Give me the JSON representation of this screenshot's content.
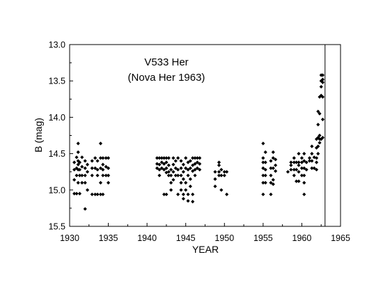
{
  "chart_data": {
    "type": "scatter",
    "title": [
      "V533 Her",
      "(Nova Her 1963)"
    ],
    "xlabel": "YEAR",
    "ylabel": "B  (mag)",
    "xlim": [
      1930,
      1965
    ],
    "ylim": [
      13.0,
      15.5
    ],
    "y_inverted": true,
    "xticks": [
      1930,
      1935,
      1940,
      1945,
      1950,
      1955,
      1960,
      1965
    ],
    "yticks": [
      "13.0",
      "13.5",
      "14.0",
      "14.5",
      "15.0",
      "15.5"
    ],
    "grid": false,
    "marker": "diamond",
    "marker_color": "#000000",
    "annotations": [
      {
        "type": "vertical-line",
        "x": 1963.0
      }
    ],
    "series": [
      {
        "values": [
          [
            1930.6,
            14.62
          ],
          [
            1930.6,
            14.72
          ],
          [
            1930.6,
            14.86
          ],
          [
            1930.6,
            15.05
          ],
          [
            1930.9,
            14.55
          ],
          [
            1930.9,
            14.7
          ],
          [
            1930.9,
            14.8
          ],
          [
            1930.9,
            15.05
          ],
          [
            1931.1,
            14.36
          ],
          [
            1931.1,
            14.48
          ],
          [
            1931.1,
            14.6
          ],
          [
            1931.1,
            14.65
          ],
          [
            1931.1,
            14.72
          ],
          [
            1931.1,
            14.9
          ],
          [
            1931.3,
            14.62
          ],
          [
            1931.3,
            14.72
          ],
          [
            1931.3,
            14.8
          ],
          [
            1931.3,
            15.05
          ],
          [
            1931.6,
            14.55
          ],
          [
            1931.6,
            14.68
          ],
          [
            1931.6,
            14.8
          ],
          [
            1931.6,
            14.9
          ],
          [
            1932.0,
            14.6
          ],
          [
            1932.0,
            14.7
          ],
          [
            1932.0,
            14.8
          ],
          [
            1932.0,
            14.9
          ],
          [
            1932.0,
            15.26
          ],
          [
            1932.3,
            14.65
          ],
          [
            1932.3,
            14.75
          ],
          [
            1932.3,
            15.0
          ],
          [
            1932.9,
            14.6
          ],
          [
            1932.9,
            14.7
          ],
          [
            1932.9,
            14.8
          ],
          [
            1932.9,
            15.06
          ],
          [
            1933.3,
            14.56
          ],
          [
            1933.3,
            14.7
          ],
          [
            1933.3,
            15.06
          ],
          [
            1933.6,
            14.6
          ],
          [
            1933.6,
            14.72
          ],
          [
            1933.6,
            14.8
          ],
          [
            1933.6,
            15.06
          ],
          [
            1934.0,
            14.36
          ],
          [
            1934.0,
            14.56
          ],
          [
            1934.0,
            14.7
          ],
          [
            1934.0,
            14.9
          ],
          [
            1934.0,
            15.06
          ],
          [
            1934.3,
            14.56
          ],
          [
            1934.3,
            14.65
          ],
          [
            1934.3,
            14.72
          ],
          [
            1934.3,
            14.8
          ],
          [
            1934.3,
            15.06
          ],
          [
            1934.7,
            14.56
          ],
          [
            1934.7,
            14.68
          ],
          [
            1934.7,
            14.8
          ],
          [
            1935.0,
            14.56
          ],
          [
            1935.0,
            14.7
          ],
          [
            1935.0,
            14.8
          ],
          [
            1935.0,
            14.9
          ],
          [
            1941.3,
            14.56
          ],
          [
            1941.3,
            14.64
          ],
          [
            1941.3,
            14.7
          ],
          [
            1941.6,
            14.56
          ],
          [
            1941.6,
            14.65
          ],
          [
            1941.6,
            14.72
          ],
          [
            1941.6,
            14.8
          ],
          [
            1941.9,
            14.56
          ],
          [
            1941.9,
            14.62
          ],
          [
            1941.9,
            14.7
          ],
          [
            1942.2,
            14.56
          ],
          [
            1942.2,
            14.64
          ],
          [
            1942.2,
            14.72
          ],
          [
            1942.2,
            15.06
          ],
          [
            1942.5,
            14.56
          ],
          [
            1942.5,
            14.62
          ],
          [
            1942.5,
            14.7
          ],
          [
            1942.5,
            14.76
          ],
          [
            1942.5,
            15.06
          ],
          [
            1942.8,
            14.56
          ],
          [
            1942.8,
            14.66
          ],
          [
            1942.8,
            14.75
          ],
          [
            1942.8,
            14.8
          ],
          [
            1943.1,
            14.72
          ],
          [
            1943.1,
            14.8
          ],
          [
            1943.1,
            14.9
          ],
          [
            1943.1,
            15.0
          ],
          [
            1943.4,
            14.56
          ],
          [
            1943.4,
            14.65
          ],
          [
            1943.4,
            14.75
          ],
          [
            1943.4,
            14.86
          ],
          [
            1943.7,
            14.6
          ],
          [
            1943.7,
            14.7
          ],
          [
            1943.7,
            14.8
          ],
          [
            1944.0,
            14.56
          ],
          [
            1944.0,
            14.72
          ],
          [
            1944.0,
            14.8
          ],
          [
            1944.0,
            15.06
          ],
          [
            1944.4,
            14.6
          ],
          [
            1944.4,
            14.7
          ],
          [
            1944.4,
            14.8
          ],
          [
            1944.4,
            14.9
          ],
          [
            1944.4,
            15.0
          ],
          [
            1944.7,
            14.65
          ],
          [
            1944.7,
            14.75
          ],
          [
            1944.7,
            14.85
          ],
          [
            1944.7,
            15.06
          ],
          [
            1944.7,
            15.12
          ],
          [
            1945.0,
            14.56
          ],
          [
            1945.0,
            14.7
          ],
          [
            1945.0,
            14.9
          ],
          [
            1945.0,
            15.0
          ],
          [
            1945.3,
            14.62
          ],
          [
            1945.3,
            14.72
          ],
          [
            1945.3,
            14.8
          ],
          [
            1945.3,
            15.06
          ],
          [
            1945.3,
            15.15
          ],
          [
            1945.6,
            14.6
          ],
          [
            1945.6,
            14.7
          ],
          [
            1945.6,
            14.85
          ],
          [
            1945.6,
            14.95
          ],
          [
            1945.9,
            14.56
          ],
          [
            1945.9,
            14.66
          ],
          [
            1945.9,
            14.74
          ],
          [
            1945.9,
            15.06
          ],
          [
            1945.9,
            15.16
          ],
          [
            1946.2,
            14.56
          ],
          [
            1946.2,
            14.64
          ],
          [
            1946.2,
            14.72
          ],
          [
            1946.2,
            14.8
          ],
          [
            1946.5,
            14.56
          ],
          [
            1946.5,
            14.62
          ],
          [
            1946.5,
            14.7
          ],
          [
            1946.8,
            14.56
          ],
          [
            1946.8,
            14.64
          ],
          [
            1946.8,
            14.72
          ],
          [
            1948.8,
            14.75
          ],
          [
            1948.8,
            14.85
          ],
          [
            1948.8,
            14.95
          ],
          [
            1949.3,
            14.62
          ],
          [
            1949.3,
            14.66
          ],
          [
            1949.3,
            14.75
          ],
          [
            1949.3,
            14.8
          ],
          [
            1949.6,
            14.72
          ],
          [
            1949.6,
            14.8
          ],
          [
            1949.6,
            15.0
          ],
          [
            1950.0,
            14.75
          ],
          [
            1950.0,
            14.8
          ],
          [
            1950.3,
            14.75
          ],
          [
            1950.3,
            15.06
          ],
          [
            1955.0,
            14.36
          ],
          [
            1955.0,
            14.56
          ],
          [
            1955.0,
            14.62
          ],
          [
            1955.0,
            14.7
          ],
          [
            1955.0,
            14.8
          ],
          [
            1955.0,
            14.9
          ],
          [
            1955.0,
            15.06
          ],
          [
            1955.3,
            14.48
          ],
          [
            1955.3,
            14.62
          ],
          [
            1955.3,
            14.72
          ],
          [
            1955.3,
            14.8
          ],
          [
            1955.3,
            14.9
          ],
          [
            1956.0,
            14.6
          ],
          [
            1956.0,
            14.7
          ],
          [
            1956.0,
            14.8
          ],
          [
            1956.0,
            14.9
          ],
          [
            1956.0,
            15.06
          ],
          [
            1956.3,
            14.48
          ],
          [
            1956.3,
            14.56
          ],
          [
            1956.3,
            14.7
          ],
          [
            1956.3,
            14.86
          ],
          [
            1956.3,
            14.92
          ],
          [
            1956.6,
            14.58
          ],
          [
            1956.6,
            14.66
          ],
          [
            1956.6,
            14.74
          ],
          [
            1958.2,
            14.75
          ],
          [
            1958.6,
            14.62
          ],
          [
            1958.6,
            14.66
          ],
          [
            1958.6,
            14.72
          ],
          [
            1959.0,
            14.56
          ],
          [
            1959.0,
            14.62
          ],
          [
            1959.0,
            14.72
          ],
          [
            1959.0,
            14.8
          ],
          [
            1959.3,
            14.62
          ],
          [
            1959.3,
            14.72
          ],
          [
            1959.3,
            14.88
          ],
          [
            1959.6,
            14.5
          ],
          [
            1959.6,
            14.62
          ],
          [
            1959.6,
            14.66
          ],
          [
            1959.6,
            14.75
          ],
          [
            1959.6,
            14.88
          ],
          [
            1960.0,
            14.56
          ],
          [
            1960.0,
            14.62
          ],
          [
            1960.0,
            14.7
          ],
          [
            1960.0,
            14.8
          ],
          [
            1960.3,
            14.5
          ],
          [
            1960.3,
            14.6
          ],
          [
            1960.3,
            14.7
          ],
          [
            1960.3,
            14.8
          ],
          [
            1960.3,
            14.9
          ],
          [
            1960.3,
            15.06
          ],
          [
            1960.6,
            14.62
          ],
          [
            1960.6,
            14.72
          ],
          [
            1961.0,
            14.56
          ],
          [
            1961.0,
            14.6
          ],
          [
            1961.3,
            14.4
          ],
          [
            1961.3,
            14.5
          ],
          [
            1961.3,
            14.6
          ],
          [
            1961.3,
            14.7
          ],
          [
            1961.6,
            14.55
          ],
          [
            1961.6,
            14.7
          ],
          [
            1961.9,
            14.3
          ],
          [
            1961.9,
            14.42
          ],
          [
            1961.9,
            14.56
          ],
          [
            1961.9,
            14.62
          ],
          [
            1961.9,
            14.72
          ],
          [
            1962.1,
            13.92
          ],
          [
            1962.1,
            14.1
          ],
          [
            1962.1,
            14.28
          ],
          [
            1962.1,
            14.4
          ],
          [
            1962.1,
            14.5
          ],
          [
            1962.3,
            13.72
          ],
          [
            1962.3,
            13.95
          ],
          [
            1962.3,
            14.25
          ],
          [
            1962.3,
            14.3
          ],
          [
            1962.3,
            14.35
          ],
          [
            1962.5,
            13.42
          ],
          [
            1962.5,
            13.5
          ],
          [
            1962.5,
            13.58
          ],
          [
            1962.5,
            13.7
          ],
          [
            1962.5,
            14.3
          ],
          [
            1962.7,
            13.42
          ],
          [
            1962.7,
            13.48
          ],
          [
            1962.7,
            13.52
          ],
          [
            1962.7,
            13.72
          ],
          [
            1962.7,
            14.03
          ],
          [
            1962.7,
            14.28
          ]
        ]
      }
    ]
  }
}
